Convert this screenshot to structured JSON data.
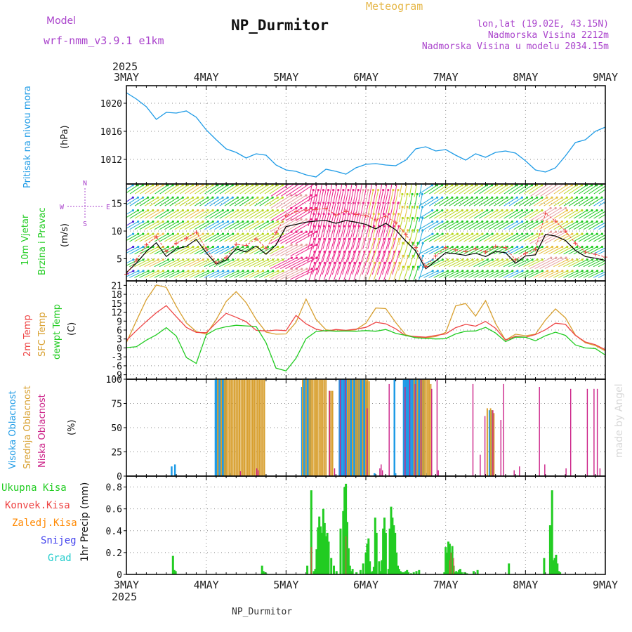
{
  "header": {
    "model_label": "Model",
    "model_name": "wrf-nmm_v3.9.1 e1km",
    "station": "NP_Durmitor",
    "title": "Meteogram",
    "coords": "lon,lat (19.02E, 43.15N)",
    "elevation": "Nadmorska Visina 2212m",
    "model_elevation": "Nadmorska Visina u modelu 2034.15m",
    "footer_station": "NP_Durmitor",
    "watermark": "made by Angel"
  },
  "colors": {
    "pressure": "#1e9be6",
    "temp2m": "#ee4444",
    "sfc": "#d8a030",
    "dewpt": "#22cc22",
    "cloud_high": "#1e9be6",
    "cloud_mid": "#d8a030",
    "cloud_low": "#cc2288",
    "precip": "#22cc22",
    "precip_conv": "#ee4444",
    "precip_frz": "#ff8800",
    "snow": "#4444ee",
    "graupel": "#22cccc",
    "wind_speed": "#000000",
    "gust": "#ee4444",
    "model_label": "#aa44cc"
  },
  "chart_data": [
    {
      "type": "line",
      "panel": "pressure",
      "ylabel": "Pritisak na nivou mora",
      "unit": "(hPa)",
      "ylim": [
        1008.5,
        1022.5
      ],
      "yticks": [
        1012,
        1016,
        1020
      ],
      "x_labels": [
        "3MAY",
        "4MAY",
        "5MAY",
        "6MAY",
        "7MAY",
        "8MAY",
        "9MAY"
      ],
      "year": "2025",
      "x": [
        0,
        3,
        6,
        9,
        12,
        15,
        18,
        21,
        24,
        27,
        30,
        33,
        36,
        39,
        42,
        45,
        48,
        51,
        54,
        57,
        60,
        63,
        66,
        69,
        72,
        75,
        78,
        81,
        84,
        87,
        90,
        93,
        96,
        99,
        102,
        105,
        108,
        111,
        114,
        117,
        120,
        123,
        126,
        129,
        132,
        135,
        138,
        141,
        144
      ],
      "y": [
        1021.5,
        1020.6,
        1019.5,
        1017.7,
        1018.7,
        1018.6,
        1018.9,
        1018.0,
        1016.2,
        1014.8,
        1013.5,
        1013.0,
        1012.2,
        1012.8,
        1012.6,
        1011.2,
        1010.5,
        1010.3,
        1009.8,
        1009.5,
        1010.6,
        1010.3,
        1009.9,
        1010.8,
        1011.3,
        1011.4,
        1011.2,
        1011.1,
        1011.9,
        1013.5,
        1013.8,
        1013.2,
        1013.4,
        1012.6,
        1011.9,
        1012.8,
        1012.3,
        1013.0,
        1013.2,
        1012.9,
        1011.8,
        1010.5,
        1010.2,
        1010.8,
        1012.5,
        1014.4,
        1014.8,
        1016.0,
        1016.6
      ]
    },
    {
      "type": "line",
      "panel": "wind",
      "ylabel": "10m Vjetar Brzina i Pravac",
      "unit": "(m/s)",
      "compass": {
        "n": "N",
        "s": "S",
        "w": "W",
        "e": "E"
      },
      "ylim": [
        1,
        18.5
      ],
      "yticks": [
        5,
        10,
        15
      ],
      "x": [
        0,
        3,
        6,
        9,
        12,
        15,
        18,
        21,
        24,
        27,
        30,
        33,
        36,
        39,
        42,
        45,
        48,
        51,
        54,
        57,
        60,
        63,
        66,
        69,
        72,
        75,
        78,
        81,
        84,
        87,
        90,
        93,
        96,
        99,
        102,
        105,
        108,
        111,
        114,
        117,
        120,
        123,
        126,
        129,
        132,
        135,
        138,
        141,
        144
      ],
      "series": [
        {
          "role": "speed",
          "values": [
            2.5,
            4.2,
            6.3,
            7.9,
            5.4,
            6.8,
            7.2,
            8.5,
            6.1,
            4.0,
            4.8,
            6.8,
            6.2,
            7.3,
            5.8,
            7.5,
            10.8,
            11.2,
            11.6,
            11.8,
            11.9,
            11.4,
            11.9,
            11.6,
            11.2,
            10.4,
            11.4,
            10.2,
            8.2,
            6.4,
            3.2,
            4.6,
            6.1,
            5.9,
            5.6,
            6.0,
            5.4,
            6.3,
            6.1,
            4.2,
            5.5,
            5.7,
            9.4,
            9.1,
            8.3,
            6.5,
            5.4,
            5.1,
            4.7
          ]
        },
        {
          "role": "gust",
          "values": [
            2.2,
            4.8,
            7.5,
            9.0,
            6.3,
            7.8,
            8.7,
            9.8,
            6.8,
            4.3,
            5.2,
            7.6,
            7.4,
            8.6,
            6.9,
            9.7,
            12.8,
            13.5,
            13.8,
            13.9,
            14.1,
            12.9,
            13.6,
            13.0,
            12.8,
            12.0,
            12.7,
            11.5,
            9.4,
            7.0,
            3.6,
            5.5,
            7.0,
            6.6,
            6.3,
            6.8,
            6.2,
            7.2,
            7.0,
            4.8,
            6.0,
            6.7,
            13.2,
            11.8,
            10.0,
            7.8,
            6.2,
            5.8,
            5.3
          ]
        }
      ]
    },
    {
      "type": "line",
      "panel": "temperature",
      "ylabel": "2m Temp SFC Temp dewpt Temp",
      "unit": "(C)",
      "ylim": [
        -10.5,
        22.5
      ],
      "yticks": [
        -9,
        -6,
        -3,
        0,
        3,
        6,
        9,
        12,
        15,
        18,
        21
      ],
      "x": [
        0,
        3,
        6,
        9,
        12,
        15,
        18,
        21,
        24,
        27,
        30,
        33,
        36,
        39,
        42,
        45,
        48,
        51,
        54,
        57,
        60,
        63,
        66,
        69,
        72,
        75,
        78,
        81,
        84,
        87,
        90,
        93,
        96,
        99,
        102,
        105,
        108,
        111,
        114,
        117,
        120,
        123,
        126,
        129,
        132,
        135,
        138,
        141,
        144
      ],
      "series": [
        {
          "name": "2m Temp",
          "values": [
            2.5,
            5.8,
            8.9,
            11.8,
            14.2,
            10.5,
            6.9,
            5.2,
            5.1,
            8.4,
            11.6,
            10.3,
            8.8,
            5.9,
            5.7,
            6.0,
            5.8,
            10.9,
            8.1,
            6.3,
            5.6,
            6.2,
            5.9,
            6.3,
            6.9,
            8.6,
            8.1,
            6.4,
            4.1,
            3.8,
            3.6,
            4.2,
            4.7,
            6.8,
            7.9,
            7.3,
            8.9,
            6.6,
            2.6,
            3.9,
            3.6,
            4.5,
            6.1,
            8.3,
            7.9,
            4.2,
            2.0,
            1.1,
            -0.6
          ]
        },
        {
          "name": "SFC Temp",
          "values": [
            1.8,
            9.1,
            16.2,
            21.1,
            20.3,
            14.0,
            8.4,
            5.5,
            4.6,
            9.5,
            15.6,
            18.9,
            15.2,
            9.6,
            5.3,
            4.6,
            4.7,
            8.6,
            16.4,
            9.6,
            6.1,
            5.7,
            5.8,
            6.1,
            8.3,
            13.4,
            13.2,
            8.5,
            4.4,
            3.6,
            3.4,
            3.8,
            5.2,
            14.1,
            14.9,
            10.7,
            15.9,
            8.2,
            2.6,
            4.6,
            4.1,
            4.6,
            9.4,
            13.1,
            10.1,
            4.3,
            1.7,
            0.8,
            -1.0
          ]
        },
        {
          "name": "dewpt Temp",
          "values": [
            0.1,
            0.4,
            2.6,
            4.4,
            6.8,
            4.0,
            -3.2,
            -5.2,
            4.4,
            6.3,
            7.1,
            7.6,
            7.4,
            7.2,
            1.7,
            -6.8,
            -7.7,
            -3.5,
            3.1,
            5.5,
            5.8,
            5.6,
            5.7,
            5.6,
            5.8,
            5.6,
            6.2,
            4.9,
            4.2,
            3.4,
            3.2,
            3.0,
            3.1,
            4.7,
            5.6,
            5.7,
            6.9,
            5.0,
            2.1,
            3.6,
            3.6,
            2.4,
            4.1,
            5.3,
            4.2,
            1.0,
            0.0,
            -0.2,
            -2.4
          ]
        }
      ]
    },
    {
      "type": "bar",
      "panel": "cloud",
      "ylabel": "Visoka Oblacnost Srednja Oblacnost Niska Oblacnost",
      "unit": "(%)",
      "ylim": [
        0,
        100
      ],
      "yticks": [
        0,
        25,
        50,
        75,
        100
      ],
      "series": [
        {
          "name": "Visoka Oblacnost",
          "x": [
            13.6,
            14.6,
            26.8,
            27.3,
            27.8,
            28.3,
            28.8,
            29.3,
            29.8,
            31.4,
            52.8,
            53.3,
            53.8,
            54.3,
            54.8,
            55.3,
            64.1,
            64.6,
            65.1,
            65.6,
            66.1,
            66.6,
            67.1,
            67.6,
            68.1,
            68.6,
            69.1,
            69.6,
            70.1,
            70.6,
            71.1,
            71.6,
            72.1,
            74.6,
            80.6,
            80.9,
            83.4,
            83.9,
            84.4,
            84.9,
            85.4,
            85.9,
            86.4,
            86.9,
            87.4,
            87.9,
            88.4,
            88.9,
            89.4,
            90.4,
            109.2,
            109.7
          ],
          "values": [
            10,
            12,
            100,
            100,
            100,
            100,
            100,
            100,
            100,
            3,
            92,
            100,
            100,
            100,
            100,
            100,
            100,
            100,
            100,
            100,
            100,
            100,
            100,
            100,
            100,
            100,
            100,
            100,
            100,
            100,
            100,
            100,
            98,
            3,
            100,
            3,
            100,
            100,
            100,
            100,
            100,
            100,
            100,
            100,
            100,
            100,
            100,
            100,
            100,
            3,
            68,
            68
          ]
        },
        {
          "name": "Srednja Oblacnost",
          "x": [
            27.5,
            28.5,
            29.5,
            30.0,
            30.5,
            31.0,
            31.5,
            32.0,
            32.5,
            33.0,
            33.5,
            34.0,
            34.5,
            35.0,
            35.5,
            36.0,
            36.5,
            37.0,
            37.5,
            38.0,
            38.5,
            39.0,
            39.5,
            40.0,
            40.5,
            41.0,
            41.5,
            53.0,
            54.0,
            55.0,
            55.5,
            56.0,
            56.5,
            57.0,
            57.5,
            58.0,
            58.5,
            59.0,
            59.5,
            60.0,
            61.0,
            61.5,
            62.0,
            66.5,
            67.0,
            68.0,
            69.0,
            69.5,
            70.0,
            71.0,
            72.0,
            72.5,
            73.0,
            86.5,
            87.5,
            88.5,
            89.0,
            89.5,
            90.0,
            90.5,
            91.0,
            91.5,
            108.5,
            109.5,
            110.0,
            110.5
          ],
          "values": [
            100,
            100,
            100,
            100,
            100,
            100,
            100,
            100,
            100,
            100,
            100,
            100,
            100,
            100,
            100,
            100,
            100,
            100,
            100,
            100,
            100,
            100,
            100,
            100,
            100,
            100,
            100,
            100,
            100,
            100,
            100,
            100,
            100,
            100,
            100,
            100,
            100,
            100,
            100,
            100,
            88,
            88,
            88,
            100,
            100,
            100,
            100,
            100,
            100,
            100,
            100,
            100,
            98,
            100,
            100,
            100,
            100,
            100,
            100,
            100,
            100,
            95,
            70,
            70,
            68,
            65
          ]
        },
        {
          "name": "Niska Oblacnost",
          "x": [
            34.3,
            39.2,
            39.6,
            61.1,
            62.6,
            64.3,
            65.8,
            72.4,
            76.2,
            76.6,
            77.0,
            79.0,
            83.8,
            85.2,
            86.8,
            88.6,
            91.8,
            93.4,
            93.8,
            104.2,
            106.4,
            107.8,
            110.2,
            112.6,
            113.4,
            116.6,
            118.2,
            124.2,
            125.8,
            132.2,
            133.6,
            138.6,
            140.6,
            141.6,
            142.4
          ],
          "values": [
            5,
            8,
            6,
            88,
            8,
            100,
            100,
            70,
            8,
            12,
            6,
            95,
            92,
            100,
            95,
            100,
            90,
            100,
            6,
            95,
            22,
            62,
            68,
            58,
            95,
            6,
            10,
            92,
            12,
            8,
            90,
            90,
            90,
            90,
            8
          ]
        }
      ]
    },
    {
      "type": "bar",
      "panel": "precip",
      "ylabel": "1hr Precip (mm)",
      "legend": [
        "Ukupna Kisa",
        "Konvek.Kisa",
        "Zaledj.Kisa",
        "Snijeg",
        "Grad"
      ],
      "ylim": [
        0,
        0.9
      ],
      "yticks": [
        0,
        0.2,
        0.4,
        0.6,
        0.8
      ],
      "x_labels": [
        "3MAY",
        "4MAY",
        "5MAY",
        "6MAY",
        "7MAY",
        "8MAY",
        "9MAY"
      ],
      "year": "2025",
      "series": [
        {
          "name": "Ukupna Kisa",
          "x": [
            14.0,
            14.4,
            14.8,
            40.8,
            41.2,
            41.6,
            42.0,
            54.4,
            55.6,
            56.4,
            56.8,
            57.2,
            57.6,
            58.0,
            58.4,
            58.8,
            59.2,
            59.6,
            60.0,
            60.4,
            60.8,
            61.6,
            62.4,
            63.2,
            64.4,
            65.2,
            65.6,
            66.0,
            66.4,
            66.8,
            67.2,
            67.6,
            68.0,
            69.2,
            70.4,
            71.2,
            72.0,
            72.4,
            72.8,
            73.2,
            73.6,
            74.0,
            74.4,
            74.8,
            75.2,
            76.0,
            76.4,
            76.8,
            77.2,
            77.6,
            78.0,
            78.8,
            79.2,
            79.6,
            80.0,
            80.4,
            80.8,
            81.2,
            81.6,
            82.0,
            82.4,
            82.8,
            83.2,
            83.6,
            84.0,
            84.4,
            84.8,
            85.6,
            86.4,
            87.2,
            88.0,
            95.6,
            96.0,
            96.4,
            96.8,
            97.2,
            97.6,
            98.0,
            98.4,
            98.8,
            99.2,
            99.6,
            100.0,
            100.4,
            100.8,
            101.6,
            102.4,
            104.4,
            105.6,
            115.0,
            125.6,
            127.4,
            128.0,
            128.4,
            128.8,
            129.2,
            129.6,
            130.0,
            130.4
          ],
          "values": [
            0.17,
            0.04,
            0.03,
            0.08,
            0.03,
            0.02,
            0.01,
            0.08,
            0.77,
            0.03,
            0.05,
            0.23,
            0.43,
            0.53,
            0.44,
            0.38,
            0.6,
            0.47,
            0.35,
            0.38,
            0.3,
            0.15,
            0.08,
            0.03,
            0.42,
            0.58,
            0.8,
            0.83,
            0.48,
            0.24,
            0.08,
            0.03,
            0.05,
            0.02,
            0.04,
            0.1,
            0.2,
            0.28,
            0.33,
            0.12,
            0.02,
            0.03,
            0.07,
            0.52,
            0.38,
            0.12,
            0.03,
            0.13,
            0.42,
            0.52,
            0.38,
            0.05,
            0.42,
            0.62,
            0.52,
            0.45,
            0.38,
            0.2,
            0.08,
            0.05,
            0.03,
            0.02,
            0.02,
            0.02,
            0.03,
            0.04,
            0.02,
            0.01,
            0.02,
            0.03,
            0.04,
            0.02,
            0.25,
            0.2,
            0.3,
            0.28,
            0.2,
            0.26,
            0.08,
            0.02,
            0.03,
            0.02,
            0.04,
            0.05,
            0.02,
            0.02,
            0.01,
            0.03,
            0.04,
            0.1,
            0.15,
            0.45,
            0.77,
            0.13,
            0.15,
            0.18,
            0.1,
            0.03,
            0.02
          ]
        },
        {
          "name": "Konvek.Kisa",
          "x": [
            55.6,
            66.0,
            97.2,
            97.6,
            98.4
          ],
          "values": [
            0.25,
            0.35,
            0.13,
            0.2,
            0.15
          ]
        }
      ]
    }
  ]
}
